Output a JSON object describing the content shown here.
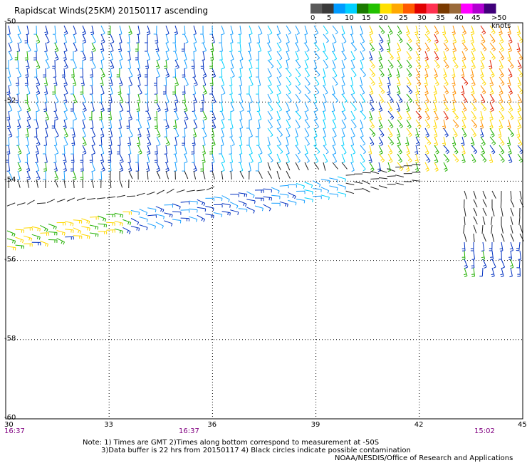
{
  "title": "Rapidscat Winds(25KM) 20150117 ascending",
  "legend": {
    "labels": [
      "0",
      "5",
      "10",
      "15",
      "20",
      "25",
      "30",
      "35",
      "40",
      "45",
      ">50 knots"
    ],
    "colors": [
      "#5a5a5a",
      "#3a3a3a",
      "#009bff",
      "#00d0ff",
      "#1a7a00",
      "#22c000",
      "#ffe000",
      "#ffa800",
      "#ff5a00",
      "#e00000",
      "#ff3050",
      "#7a3a00",
      "#9a6a3a",
      "#ff00ff",
      "#b000d0",
      "#40007a"
    ]
  },
  "map": {
    "lat_ticks": [
      "-50",
      "-52",
      "-54",
      "-56",
      "-58",
      "-60"
    ],
    "lon_ticks": [
      "30",
      "33",
      "36",
      "39",
      "42",
      "45"
    ],
    "times": [
      "16:37",
      "16:37",
      "15:02"
    ]
  },
  "notes": {
    "line1": "Note: 1) Times are GMT 2)Times along bottom correspond to measurement at -50S",
    "line2": "3)Data buffer is 22 hrs from 20150117 4) Black circles indicate possible contamination",
    "line3": "NOAA/NESDIS/Office of Research and Applications"
  }
}
